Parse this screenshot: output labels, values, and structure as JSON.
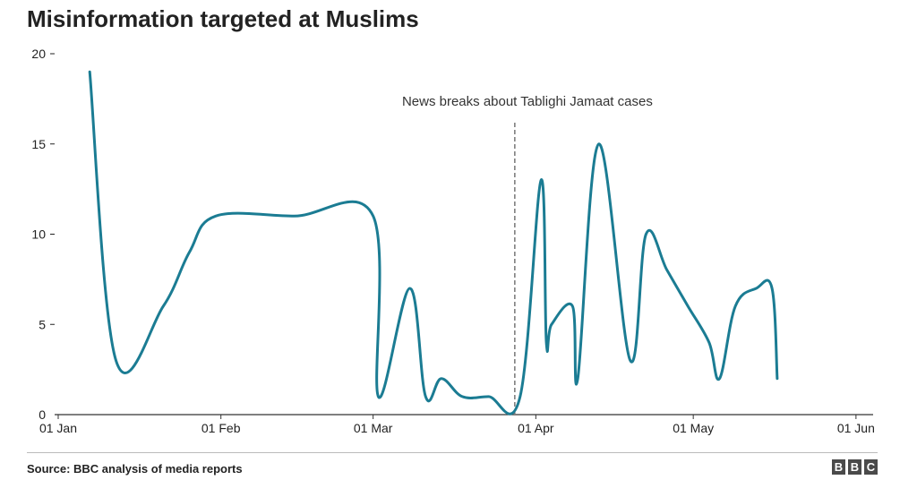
{
  "chart_data": {
    "type": "line",
    "title": "Misinformation targeted at Muslims",
    "xlabel": "",
    "ylabel": "",
    "ylim": [
      0,
      20
    ],
    "yticks": [
      0,
      5,
      10,
      15,
      20
    ],
    "xlim_days": [
      0,
      151
    ],
    "xticks": [
      {
        "label": "01 Jan",
        "day": 0
      },
      {
        "label": "01 Feb",
        "day": 31
      },
      {
        "label": "01 Mar",
        "day": 60
      },
      {
        "label": "01 Apr",
        "day": 91
      },
      {
        "label": "01 May",
        "day": 121
      },
      {
        "label": "01 Jun",
        "day": 152
      }
    ],
    "series": [
      {
        "name": "Misinformation targeted at Muslims",
        "color": "#1b7c93",
        "points": [
          [
            6,
            19
          ],
          [
            11,
            3
          ],
          [
            20,
            6
          ],
          [
            25,
            9
          ],
          [
            30,
            11
          ],
          [
            45,
            11
          ],
          [
            60,
            11
          ],
          [
            61,
            1
          ],
          [
            67,
            7
          ],
          [
            70,
            1
          ],
          [
            73,
            2
          ],
          [
            77,
            1
          ],
          [
            82,
            1
          ],
          [
            88,
            1
          ],
          [
            92,
            13
          ],
          [
            93,
            4
          ],
          [
            94,
            5
          ],
          [
            98,
            6
          ],
          [
            99,
            2
          ],
          [
            103,
            15
          ],
          [
            109,
            3
          ],
          [
            112,
            10
          ],
          [
            116,
            8
          ],
          [
            120,
            6
          ],
          [
            124,
            4
          ],
          [
            126,
            2
          ],
          [
            129,
            6
          ],
          [
            133,
            7
          ],
          [
            136,
            7
          ],
          [
            137,
            2
          ]
        ]
      }
    ],
    "annotations": [
      {
        "text": "News breaks about Tablighi Jamaat cases",
        "day": 87
      }
    ],
    "grid": false
  },
  "footer": {
    "source": "Source: BBC analysis of media reports",
    "logo_letters": [
      "B",
      "B",
      "C"
    ]
  }
}
